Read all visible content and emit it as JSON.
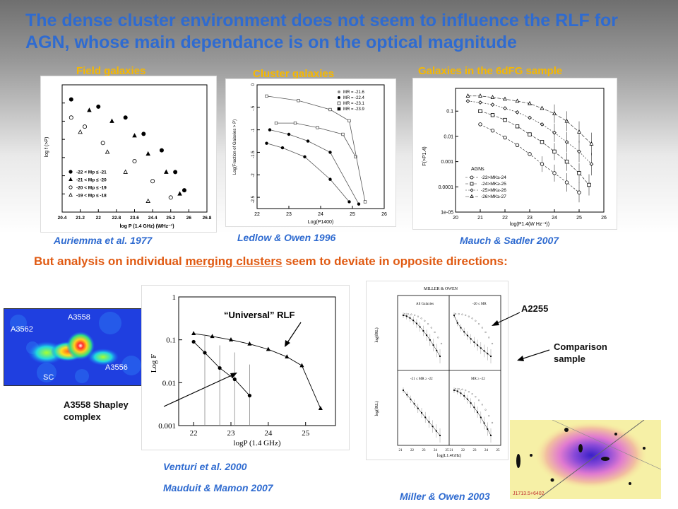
{
  "title": "The dense cluster environment does not seem to influence the RLF for AGN, whose main dependance is on the optical magnitude",
  "panels": {
    "field": {
      "title": "Field galaxies",
      "citation": "Auriemma et al. 1977",
      "ylabel": "log f (>P)",
      "xlabel": "log P (1.4 GHz) (WHz⁻¹)",
      "xticks": [
        "20.4",
        "21.2",
        "22",
        "22.8",
        "23.6",
        "24.4",
        "25.2",
        "26",
        "26.8"
      ],
      "legend": [
        "-22 < Mp ≤ -21",
        "-21 < Mp ≤ -20",
        "-20 < Mp ≤ -19",
        "-19 < Mp ≤ -18"
      ]
    },
    "cluster": {
      "title": "Cluster galaxies",
      "citation": "Ledlow & Owen 1996",
      "ylabel": "Log(Fraction of Galaxies > P)",
      "xlabel": "Log(P1400)",
      "xticks": [
        "22",
        "23",
        "24",
        "25",
        "26"
      ],
      "yticks": [
        "0",
        "-.5",
        "-1",
        "-1.5",
        "-2",
        "-2.5"
      ],
      "legend": [
        "MR = -21.6",
        "MR = -22.4",
        "MR = -23.1",
        "MR = -23.9"
      ]
    },
    "sixdf": {
      "title": "Galaxies in the 6dFG sample",
      "citation": "Mauch & Sadler 2007",
      "ylabel": "F(>P1.4)",
      "xlabel": "log(P1.4(W Hz⁻¹))",
      "xticks": [
        "20",
        "21",
        "22",
        "23",
        "24",
        "25",
        "26"
      ],
      "yticks": [
        "0.1",
        "0.01",
        "0.001",
        "0.0001",
        "1e-05"
      ],
      "legend_title": "AGNs",
      "legend": [
        "-23>MK≥-24",
        "-24>MK≥-25",
        "-25>MK≥-26",
        "-26>MK≥-27"
      ]
    }
  },
  "subtitle": {
    "before": "But analysis on individual ",
    "link": "merging clusters",
    "after": " seem to deviate in opposite directions:"
  },
  "shapley": {
    "labels": [
      "A3558",
      "A3562",
      "A3556",
      "SC"
    ],
    "caption": "A3558 Shapley complex"
  },
  "venturi": {
    "annotation": "“Universal” RLF",
    "ylabel": "Log F",
    "xlabel": "logP (1.4 GHz)",
    "xticks": [
      "22",
      "23",
      "24",
      "25"
    ],
    "yticks": [
      "1",
      "0.1",
      "0.01",
      "0.001"
    ],
    "citation1": "Venturi et al. 2000",
    "citation2": "Mauduit & Mamon 2007"
  },
  "miller": {
    "header": "MILLER & OWEN",
    "annotation": "A2255",
    "comparison": "Comparison sample",
    "quad_labels": [
      "All Galaxies",
      "-20 ≤ MR",
      "-21 ≤ MR ≥ -22",
      "MR ≥ -22"
    ],
    "citation": "Miller & Owen 2003",
    "ylabel": "log(fRL)",
    "xlabel": "log(L1.4GHz)"
  },
  "xray": {
    "label": "J1713.5+6402"
  },
  "chart_data": [
    {
      "type": "scatter",
      "title": "Field galaxies",
      "xlabel": "log P (1.4 GHz) (WHz⁻¹)",
      "ylabel": "log f (>P)",
      "series": [
        {
          "name": "-22 < Mp ≤ -21",
          "marker": "filled-circle",
          "x": [
            20.8,
            22.0,
            23.2,
            24.0,
            24.8,
            25.4,
            25.8
          ],
          "y": [
            7.2,
            6.8,
            6.2,
            5.3,
            4.4,
            3.2,
            2.2
          ]
        },
        {
          "name": "-21 < Mp ≤ -20",
          "marker": "filled-triangle",
          "x": [
            21.6,
            22.6,
            23.6,
            24.2,
            25.0,
            25.6
          ],
          "y": [
            6.6,
            6.0,
            5.2,
            4.2,
            3.2,
            2.0
          ]
        },
        {
          "name": "-20 < Mp ≤ -19",
          "marker": "open-circle",
          "x": [
            20.8,
            21.4,
            22.2,
            23.6,
            24.4,
            25.2
          ],
          "y": [
            6.2,
            5.7,
            4.8,
            3.8,
            2.7,
            1.8
          ]
        },
        {
          "name": "-19 < Mp ≤ -18",
          "marker": "open-triangle",
          "x": [
            21.2,
            22.4,
            23.2,
            24.2
          ],
          "y": [
            5.4,
            4.3,
            3.2,
            1.6
          ]
        }
      ]
    },
    {
      "type": "line",
      "title": "Cluster galaxies",
      "xlabel": "Log(P1400)",
      "ylabel": "Log(Fraction of Galaxies > P)",
      "ylim": [
        -2.75,
        0
      ],
      "series": [
        {
          "name": "MR = -21.6",
          "x": [
            22.3,
            22.8,
            23.5,
            24.3,
            24.9
          ],
          "y": [
            -1.3,
            -1.4,
            -1.6,
            -2.1,
            -2.6
          ]
        },
        {
          "name": "MR = -22.4",
          "x": [
            22.4,
            23.0,
            23.6,
            24.3,
            25.2
          ],
          "y": [
            -1.0,
            -1.1,
            -1.25,
            -1.5,
            -2.65
          ]
        },
        {
          "name": "MR = -23.1",
          "x": [
            22.6,
            23.2,
            23.9,
            24.7,
            25.1
          ],
          "y": [
            -0.85,
            -0.85,
            -0.95,
            -1.1,
            -1.6
          ]
        },
        {
          "name": "MR = -23.9",
          "x": [
            22.3,
            23.3,
            24.3,
            24.9,
            25.4
          ],
          "y": [
            -0.25,
            -0.35,
            -0.55,
            -0.8,
            -2.6
          ]
        }
      ]
    },
    {
      "type": "line",
      "title": "Galaxies in the 6dFG sample",
      "xlabel": "log(P1.4(W Hz⁻¹))",
      "ylabel": "F(>P1.4)",
      "ylim": [
        1e-05,
        0.8
      ],
      "yscale": "log",
      "series": [
        {
          "name": "-23>MK≥-24",
          "x": [
            21.0,
            21.5,
            22.0,
            22.5,
            23.0,
            23.5,
            24.0,
            24.5,
            25.0
          ],
          "y": [
            0.03,
            0.017,
            0.009,
            0.0045,
            0.002,
            0.0008,
            0.00035,
            0.00015,
            6e-05
          ]
        },
        {
          "name": "-24>MK≥-25",
          "x": [
            21.0,
            21.5,
            22.0,
            22.5,
            23.0,
            23.5,
            24.0,
            24.5,
            25.0,
            25.4
          ],
          "y": [
            0.1,
            0.07,
            0.045,
            0.025,
            0.012,
            0.006,
            0.0025,
            0.001,
            0.00035,
            0.00012
          ]
        },
        {
          "name": "-25>MK≥-26",
          "x": [
            20.5,
            21.0,
            21.5,
            22.0,
            22.5,
            23.0,
            23.5,
            24.0,
            24.5,
            25.0,
            25.5
          ],
          "y": [
            0.25,
            0.22,
            0.18,
            0.13,
            0.09,
            0.055,
            0.03,
            0.014,
            0.006,
            0.0025,
            0.0008
          ]
        },
        {
          "name": "-26>MK≥-27",
          "x": [
            20.5,
            21.0,
            21.5,
            22.0,
            22.5,
            23.0,
            23.5,
            24.0,
            24.5,
            25.0,
            25.5
          ],
          "y": [
            0.4,
            0.4,
            0.35,
            0.3,
            0.25,
            0.2,
            0.13,
            0.08,
            0.04,
            0.015,
            0.005
          ]
        }
      ]
    },
    {
      "type": "line",
      "title": "",
      "xlabel": "logP (1.4 GHz)",
      "ylabel": "Log F",
      "yscale": "log",
      "ylim": [
        0.001,
        1
      ],
      "series": [
        {
          "name": "Universal RLF",
          "marker": "triangle",
          "x": [
            22.0,
            22.5,
            23.0,
            23.5,
            24.0,
            24.5,
            24.9,
            25.4
          ],
          "y": [
            0.14,
            0.12,
            0.1,
            0.08,
            0.06,
            0.04,
            0.025,
            0.0025
          ]
        },
        {
          "name": "A3558",
          "marker": "filled-circle",
          "x": [
            22.0,
            22.3,
            22.7,
            23.1,
            23.5
          ],
          "y": [
            0.09,
            0.05,
            0.022,
            0.012,
            0.005
          ]
        }
      ]
    }
  ]
}
